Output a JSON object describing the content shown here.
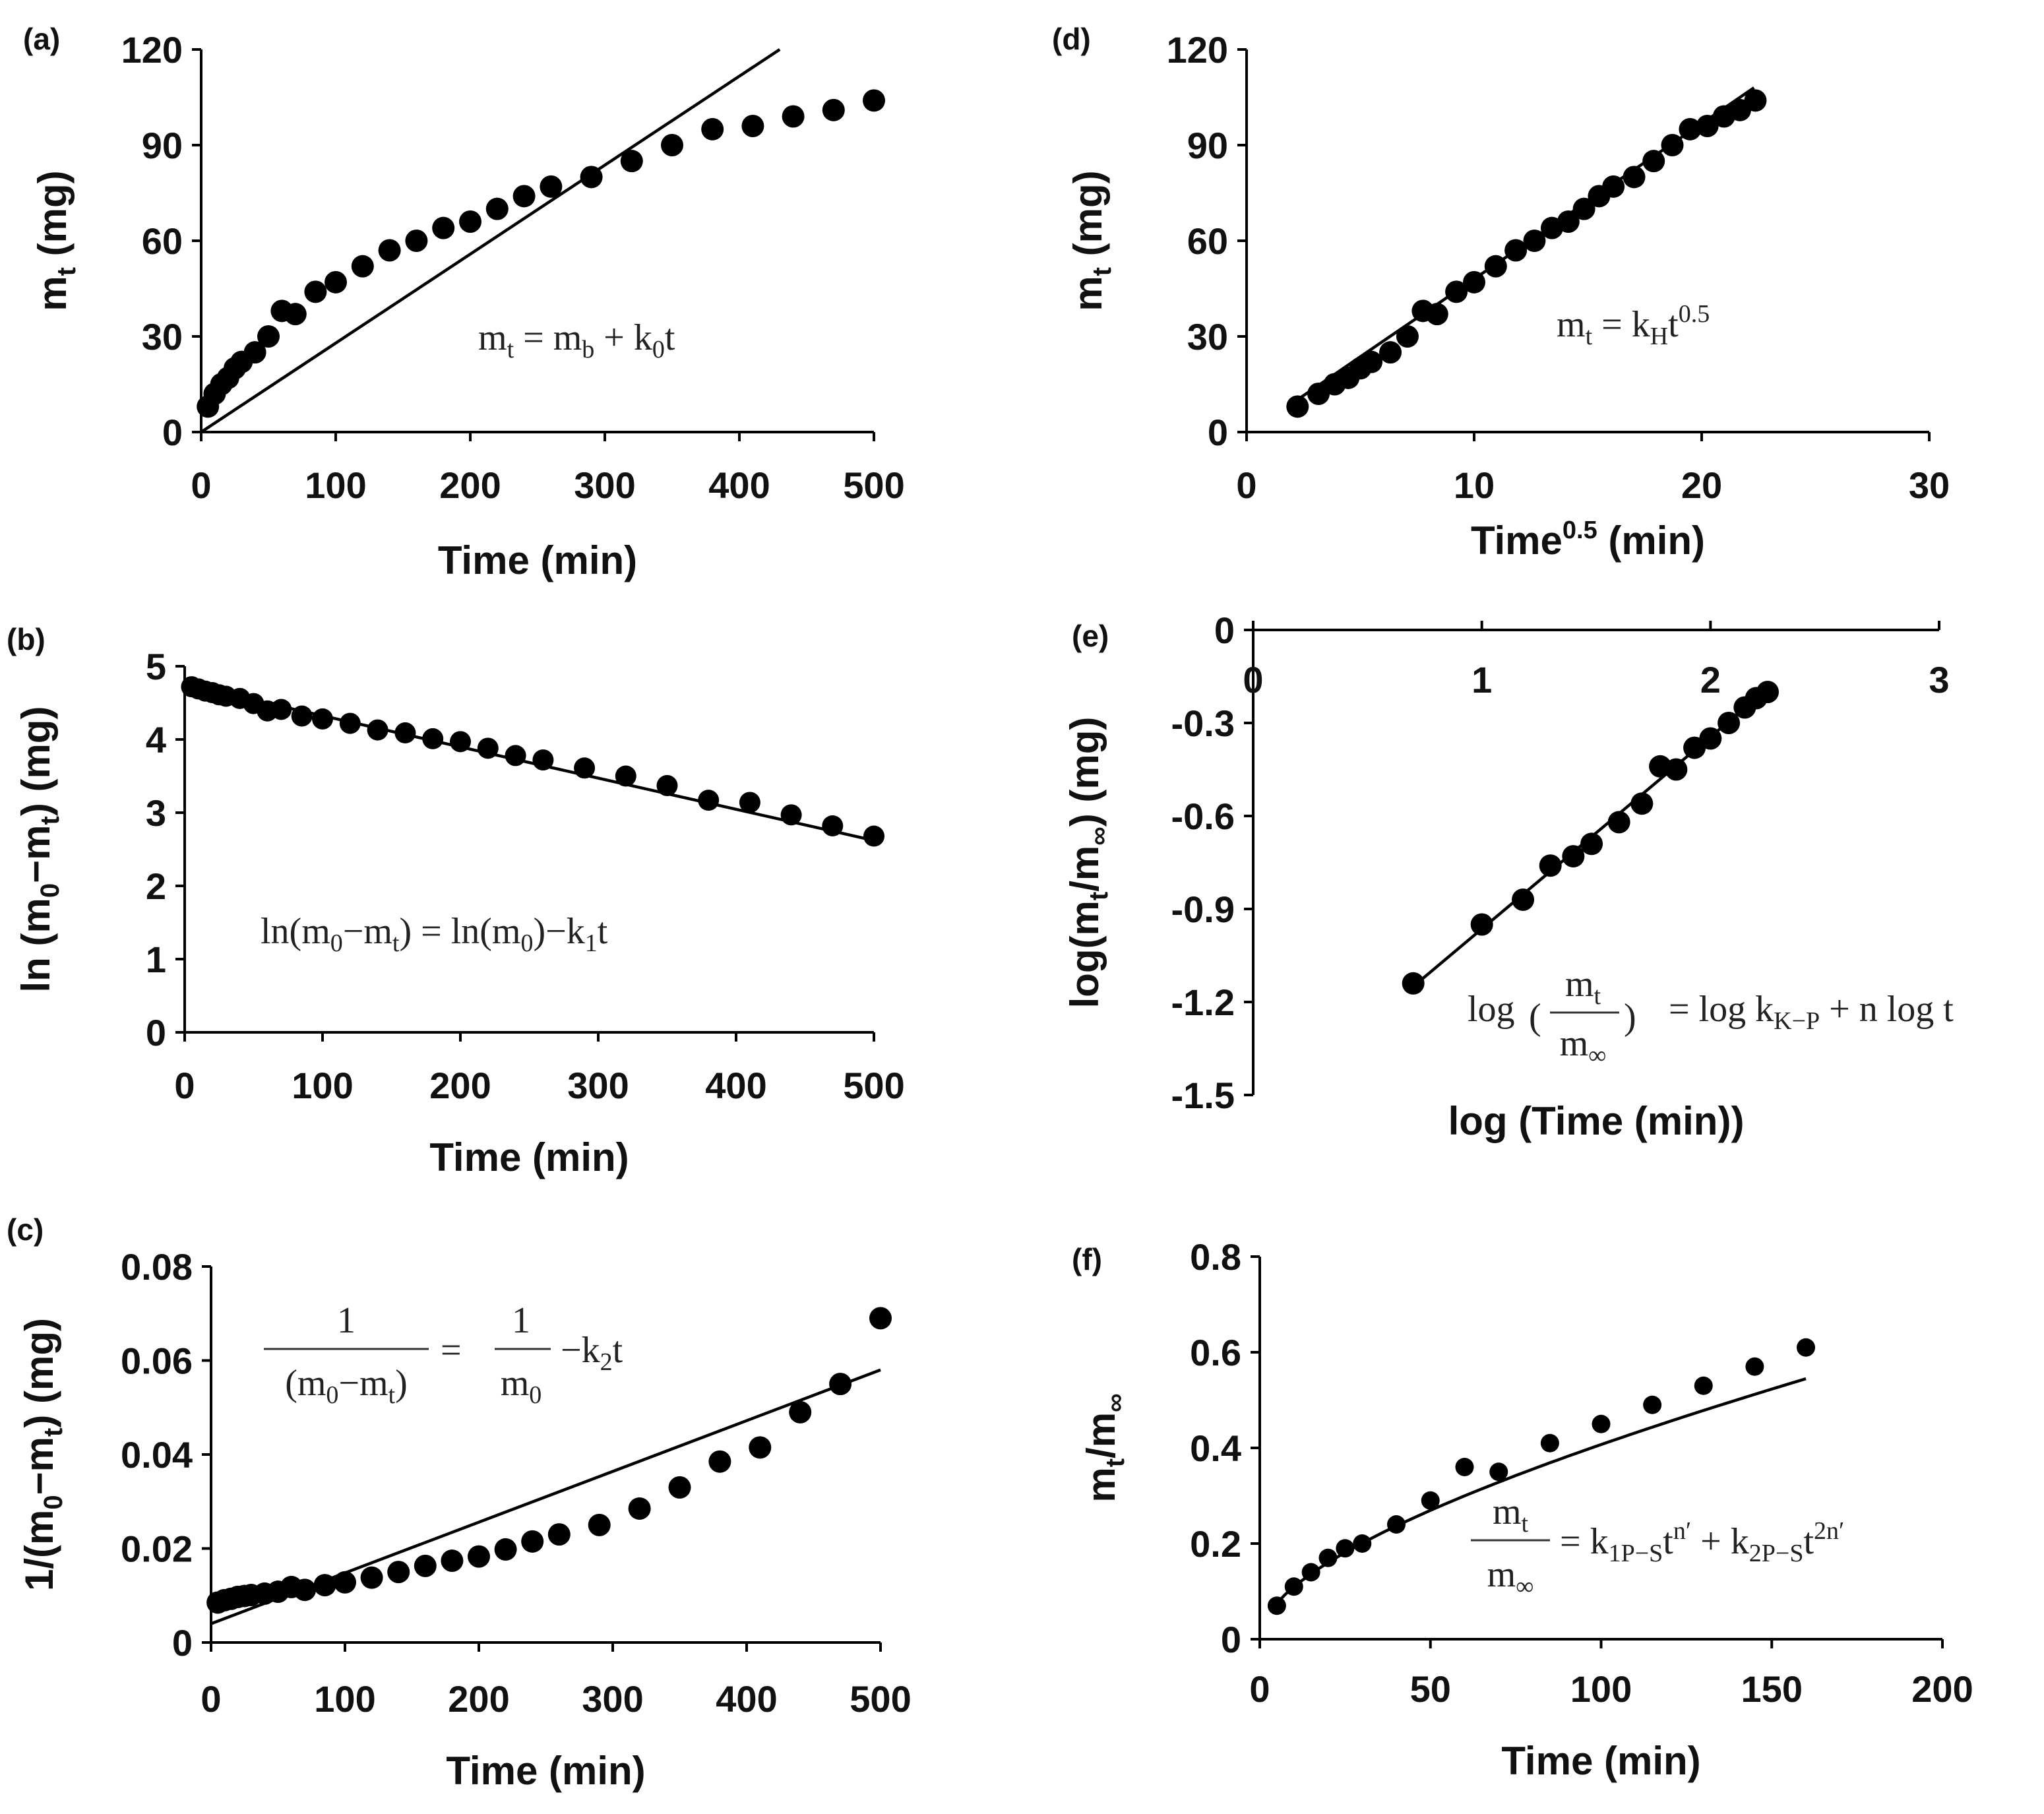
{
  "figure": {
    "colors": {
      "ink": "#000000",
      "background": "#ffffff",
      "equation_paren": "#8a7070"
    }
  },
  "chart_data": [
    {
      "id": "a",
      "panel_label": "(a)",
      "type": "scatter",
      "xlabel": "Time (min)",
      "ylabel": "m",
      "ylabel_sub": "t",
      "ylabel_tail": " (mg)",
      "xlim": [
        0,
        500
      ],
      "ylim": [
        0,
        120
      ],
      "xticks": [
        "0",
        "100",
        "200",
        "300",
        "400",
        "500"
      ],
      "yticks": [
        "0",
        "30",
        "60",
        "90",
        "120"
      ],
      "equation": "m_t = m_b + k_0 t",
      "x": [
        5,
        10,
        15,
        20,
        25,
        30,
        40,
        50,
        60,
        70,
        85,
        100,
        120,
        140,
        160,
        180,
        200,
        220,
        240,
        260,
        290,
        320,
        350,
        380,
        410,
        440,
        470,
        500
      ],
      "y": [
        8,
        12,
        15,
        17,
        20,
        22,
        25,
        30,
        38,
        37,
        44,
        47,
        52,
        57,
        60,
        64,
        66,
        70,
        74,
        77,
        80,
        85,
        90,
        95,
        96,
        99,
        101,
        104
      ],
      "fit": {
        "x": [
          0,
          430
        ],
        "y": [
          0,
          120
        ]
      }
    },
    {
      "id": "b",
      "panel_label": "(b)",
      "type": "scatter",
      "xlabel": "Time (min)",
      "ylabel": "ln (m",
      "ylabel_sub": "0",
      "ylabel_tail": "−m",
      "ylabel_sub2": "t",
      "ylabel_tail2": ") (mg)",
      "xlim": [
        0,
        500
      ],
      "ylim": [
        0,
        5
      ],
      "xticks": [
        "0",
        "100",
        "200",
        "300",
        "400",
        "500"
      ],
      "yticks": [
        "0",
        "1",
        "2",
        "3",
        "4",
        "5"
      ],
      "equation": "ln(m_0 − m_t) = ln(m_0) − k_1 t",
      "x": [
        5,
        10,
        15,
        20,
        25,
        30,
        40,
        50,
        60,
        70,
        85,
        100,
        120,
        140,
        160,
        180,
        200,
        220,
        240,
        260,
        290,
        320,
        350,
        380,
        410,
        440,
        470,
        500
      ],
      "y": [
        4.72,
        4.69,
        4.66,
        4.64,
        4.61,
        4.59,
        4.56,
        4.49,
        4.39,
        4.41,
        4.32,
        4.28,
        4.22,
        4.13,
        4.09,
        4.01,
        3.97,
        3.88,
        3.78,
        3.72,
        3.61,
        3.5,
        3.37,
        3.17,
        3.14,
        2.97,
        2.82,
        2.68
      ],
      "fit": {
        "x": [
          0,
          500
        ],
        "y": [
          4.75,
          2.62
        ]
      }
    },
    {
      "id": "c",
      "panel_label": "(c)",
      "type": "scatter",
      "xlabel": "Time (min)",
      "ylabel": "1/(m",
      "ylabel_sub": "0",
      "ylabel_tail": "−m",
      "ylabel_sub2": "t",
      "ylabel_tail2": ") (mg)",
      "xlim": [
        0,
        500
      ],
      "ylim": [
        0,
        0.08
      ],
      "xticks": [
        "0",
        "100",
        "200",
        "300",
        "400",
        "500"
      ],
      "yticks": [
        "0",
        "0.02",
        "0.04",
        "0.06",
        "0.08"
      ],
      "equation": "1/(m_0 − m_t) = 1/m_0 − k_2 t",
      "x": [
        5,
        10,
        15,
        20,
        25,
        30,
        40,
        50,
        60,
        70,
        85,
        100,
        120,
        140,
        160,
        180,
        200,
        220,
        240,
        260,
        290,
        320,
        350,
        380,
        410,
        440,
        470,
        500
      ],
      "y": [
        0.0085,
        0.009,
        0.0093,
        0.0097,
        0.0099,
        0.0101,
        0.0104,
        0.0108,
        0.0118,
        0.0112,
        0.0122,
        0.0128,
        0.0138,
        0.015,
        0.0163,
        0.0174,
        0.0183,
        0.0198,
        0.0215,
        0.023,
        0.025,
        0.0285,
        0.033,
        0.0385,
        0.0415,
        0.049,
        0.055,
        0.069
      ],
      "fit": {
        "x": [
          0,
          500
        ],
        "y": [
          0.004,
          0.058
        ]
      }
    },
    {
      "id": "d",
      "panel_label": "(d)",
      "type": "scatter",
      "xlabel": "Time",
      "xlabel_sup": "0.5",
      "xlabel_tail": " (min)",
      "ylabel": "m",
      "ylabel_sub": "t",
      "ylabel_tail": " (mg)",
      "xlim": [
        0,
        30
      ],
      "ylim": [
        0,
        120
      ],
      "xticks": [
        "0",
        "10",
        "20",
        "30"
      ],
      "yticks": [
        "0",
        "30",
        "60",
        "90",
        "120"
      ],
      "equation": "m_t = k_H t^0.5",
      "x": [
        2.24,
        3.16,
        3.87,
        4.47,
        5.0,
        5.48,
        6.32,
        7.07,
        7.75,
        8.37,
        9.22,
        10.0,
        10.95,
        11.83,
        12.65,
        13.42,
        14.14,
        14.83,
        15.49,
        16.12,
        17.03,
        17.89,
        18.71,
        19.49,
        20.25,
        20.98,
        21.68,
        22.36
      ],
      "y": [
        8,
        12,
        15,
        17,
        20,
        22,
        25,
        30,
        38,
        37,
        44,
        47,
        52,
        57,
        60,
        64,
        66,
        70,
        74,
        77,
        80,
        85,
        90,
        95,
        96,
        99,
        101,
        104
      ],
      "fit": {
        "x": [
          2,
          22.3
        ],
        "y": [
          9,
          108
        ]
      }
    },
    {
      "id": "e",
      "panel_label": "(e)",
      "type": "scatter",
      "xlabel": "log (Time (min))",
      "ylabel": "log(m",
      "ylabel_sub": "t",
      "ylabel_tail": "/m",
      "ylabel_sub2": "∞",
      "ylabel_tail2": ")  (mg)",
      "xlim": [
        0,
        3
      ],
      "ylim": [
        -1.5,
        0
      ],
      "xticks": [
        "0",
        "1",
        "2",
        "3"
      ],
      "yticks": [
        "0",
        "-0.3",
        "-0.6",
        "-0.9",
        "-1.2",
        "-1.5"
      ],
      "equation": "log(m_t / m_∞) = log k_{K−P} + n log t",
      "x": [
        0.7,
        1.0,
        1.18,
        1.3,
        1.4,
        1.48,
        1.6,
        1.7,
        1.78,
        1.85,
        1.93,
        2.0,
        2.08,
        2.15,
        2.2,
        2.25
      ],
      "y": [
        -1.14,
        -0.95,
        -0.87,
        -0.76,
        -0.73,
        -0.69,
        -0.62,
        -0.56,
        -0.44,
        -0.45,
        -0.38,
        -0.35,
        -0.3,
        -0.25,
        -0.22,
        -0.2
      ],
      "fit": {
        "x": [
          0.7,
          2.25
        ],
        "y": [
          -1.15,
          -0.19
        ]
      }
    },
    {
      "id": "f",
      "panel_label": "(f)",
      "type": "scatter",
      "xlabel": "Time (min)",
      "ylabel": "m",
      "ylabel_sub": "t",
      "ylabel_tail": "/m",
      "ylabel_sub2": "∞",
      "ylabel_tail2": "",
      "xlim": [
        0,
        200
      ],
      "ylim": [
        0,
        0.8
      ],
      "xticks": [
        "0",
        "50",
        "100",
        "150",
        "200"
      ],
      "yticks": [
        "0",
        "0.2",
        "0.4",
        "0.6",
        "0.8"
      ],
      "equation": "m_t / m_∞ = k_{1P−S} t^{n′} + k_{2P−S} t^{2n′}",
      "x": [
        5,
        10,
        15,
        20,
        25,
        30,
        40,
        50,
        60,
        70,
        85,
        100,
        115,
        130,
        145,
        160
      ],
      "y": [
        0.07,
        0.11,
        0.14,
        0.17,
        0.19,
        0.2,
        0.24,
        0.29,
        0.36,
        0.35,
        0.41,
        0.45,
        0.49,
        0.53,
        0.57,
        0.61
      ],
      "fit_curve": {
        "k1": 0.0318,
        "n": 0.5,
        "k2": 0.00089
      }
    }
  ]
}
